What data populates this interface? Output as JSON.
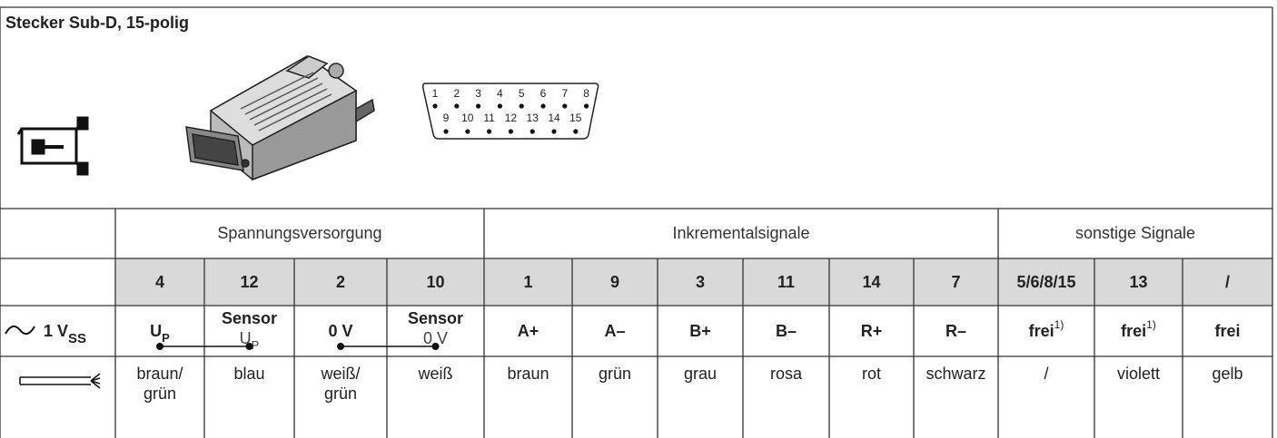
{
  "header": {
    "title": "Stecker Sub-D, 15-polig"
  },
  "connector": {
    "pins_top": [
      "1",
      "2",
      "3",
      "4",
      "5",
      "6",
      "7",
      "8"
    ],
    "pins_bottom": [
      "9",
      "10",
      "11",
      "12",
      "13",
      "14",
      "15"
    ]
  },
  "table": {
    "groups": [
      "Spannungsversorgung",
      "Inkrementalsignale",
      "sonstige Signale"
    ],
    "pins": [
      "4",
      "12",
      "2",
      "10",
      "1",
      "9",
      "3",
      "11",
      "14",
      "7",
      "5/6/8/15",
      "13",
      "/"
    ],
    "signal_label": {
      "text": "1 V",
      "sub": "SS"
    },
    "signals": [
      {
        "text": "U",
        "sub": "P"
      },
      {
        "text": "Sensor",
        "line2": "U",
        "line2_sub": "P"
      },
      {
        "text": "0 V"
      },
      {
        "text": "Sensor",
        "line2": "0 V"
      },
      {
        "text": "A+"
      },
      {
        "text": "A–"
      },
      {
        "text": "B+"
      },
      {
        "text": "B–"
      },
      {
        "text": "R+"
      },
      {
        "text": "R–"
      },
      {
        "text": "frei",
        "sup": "1)"
      },
      {
        "text": "frei",
        "sup": "1)"
      },
      {
        "text": "frei"
      }
    ],
    "colors": [
      [
        "braun/",
        "grün"
      ],
      [
        "blau"
      ],
      [
        "weiß/",
        "grün"
      ],
      [
        "weiß"
      ],
      [
        "braun"
      ],
      [
        "grün"
      ],
      [
        "grau"
      ],
      [
        "rosa"
      ],
      [
        "rot"
      ],
      [
        "schwarz"
      ],
      [
        "/"
      ],
      [
        "violett"
      ],
      [
        "gelb"
      ]
    ]
  }
}
